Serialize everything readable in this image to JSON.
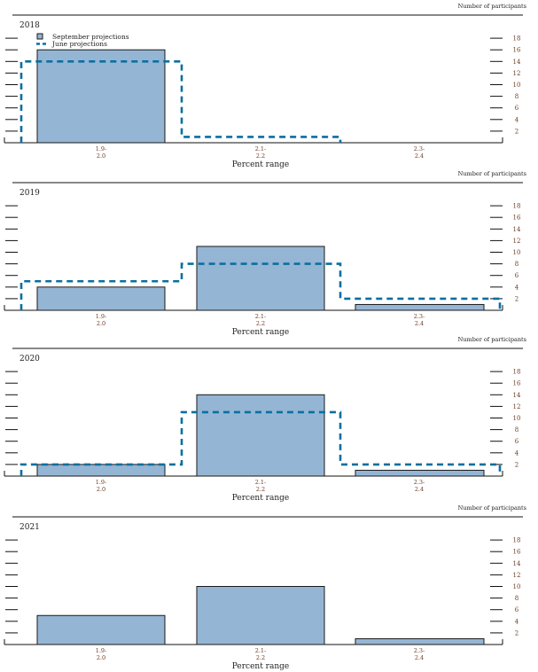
{
  "colors": {
    "september_fill": "#95b5d4",
    "bar_stroke": "#1a1a1a",
    "june_line": "#0b6f9f",
    "tick_label": "#6b3a22",
    "axis": "#111111"
  },
  "chart_data": [
    {
      "type": "bar",
      "title": "2018",
      "categories": [
        "1.9-\n2.0",
        "2.1-\n2.2",
        "2.3-\n2.4"
      ],
      "series": [
        {
          "name": "September projections",
          "values": [
            16,
            0,
            0
          ]
        },
        {
          "name": "June projections",
          "values": [
            14,
            1,
            0
          ],
          "style": "dashed-step"
        }
      ],
      "xlabel": "Percent range",
      "ylabel": "Number of participants",
      "ylim": [
        0,
        18
      ],
      "yticks": [
        2,
        4,
        6,
        8,
        10,
        12,
        14,
        16,
        18
      ],
      "legend": "top-left"
    },
    {
      "type": "bar",
      "title": "2019",
      "categories": [
        "1.9-\n2.0",
        "2.1-\n2.2",
        "2.3-\n2.4"
      ],
      "series": [
        {
          "name": "September projections",
          "values": [
            4,
            11,
            1
          ]
        },
        {
          "name": "June projections",
          "values": [
            5,
            8,
            2
          ],
          "style": "dashed-step"
        }
      ],
      "xlabel": "Percent range",
      "ylabel": "Number of participants",
      "ylim": [
        0,
        18
      ],
      "yticks": [
        2,
        4,
        6,
        8,
        10,
        12,
        14,
        16,
        18
      ]
    },
    {
      "type": "bar",
      "title": "2020",
      "categories": [
        "1.9-\n2.0",
        "2.1-\n2.2",
        "2.3-\n2.4"
      ],
      "series": [
        {
          "name": "September projections",
          "values": [
            2,
            14,
            1
          ]
        },
        {
          "name": "June projections",
          "values": [
            2,
            11,
            2
          ],
          "style": "dashed-step"
        }
      ],
      "xlabel": "Percent range",
      "ylabel": "Number of participants",
      "ylim": [
        0,
        18
      ],
      "yticks": [
        2,
        4,
        6,
        8,
        10,
        12,
        14,
        16,
        18
      ]
    },
    {
      "type": "bar",
      "title": "2021",
      "categories": [
        "1.9-\n2.0",
        "2.1-\n2.2",
        "2.3-\n2.4"
      ],
      "series": [
        {
          "name": "September projections",
          "values": [
            5,
            10,
            1
          ]
        }
      ],
      "xlabel": "Percent range",
      "ylabel": "Number of participants",
      "ylim": [
        0,
        18
      ],
      "yticks": [
        2,
        4,
        6,
        8,
        10,
        12,
        14,
        16,
        18
      ]
    }
  ]
}
